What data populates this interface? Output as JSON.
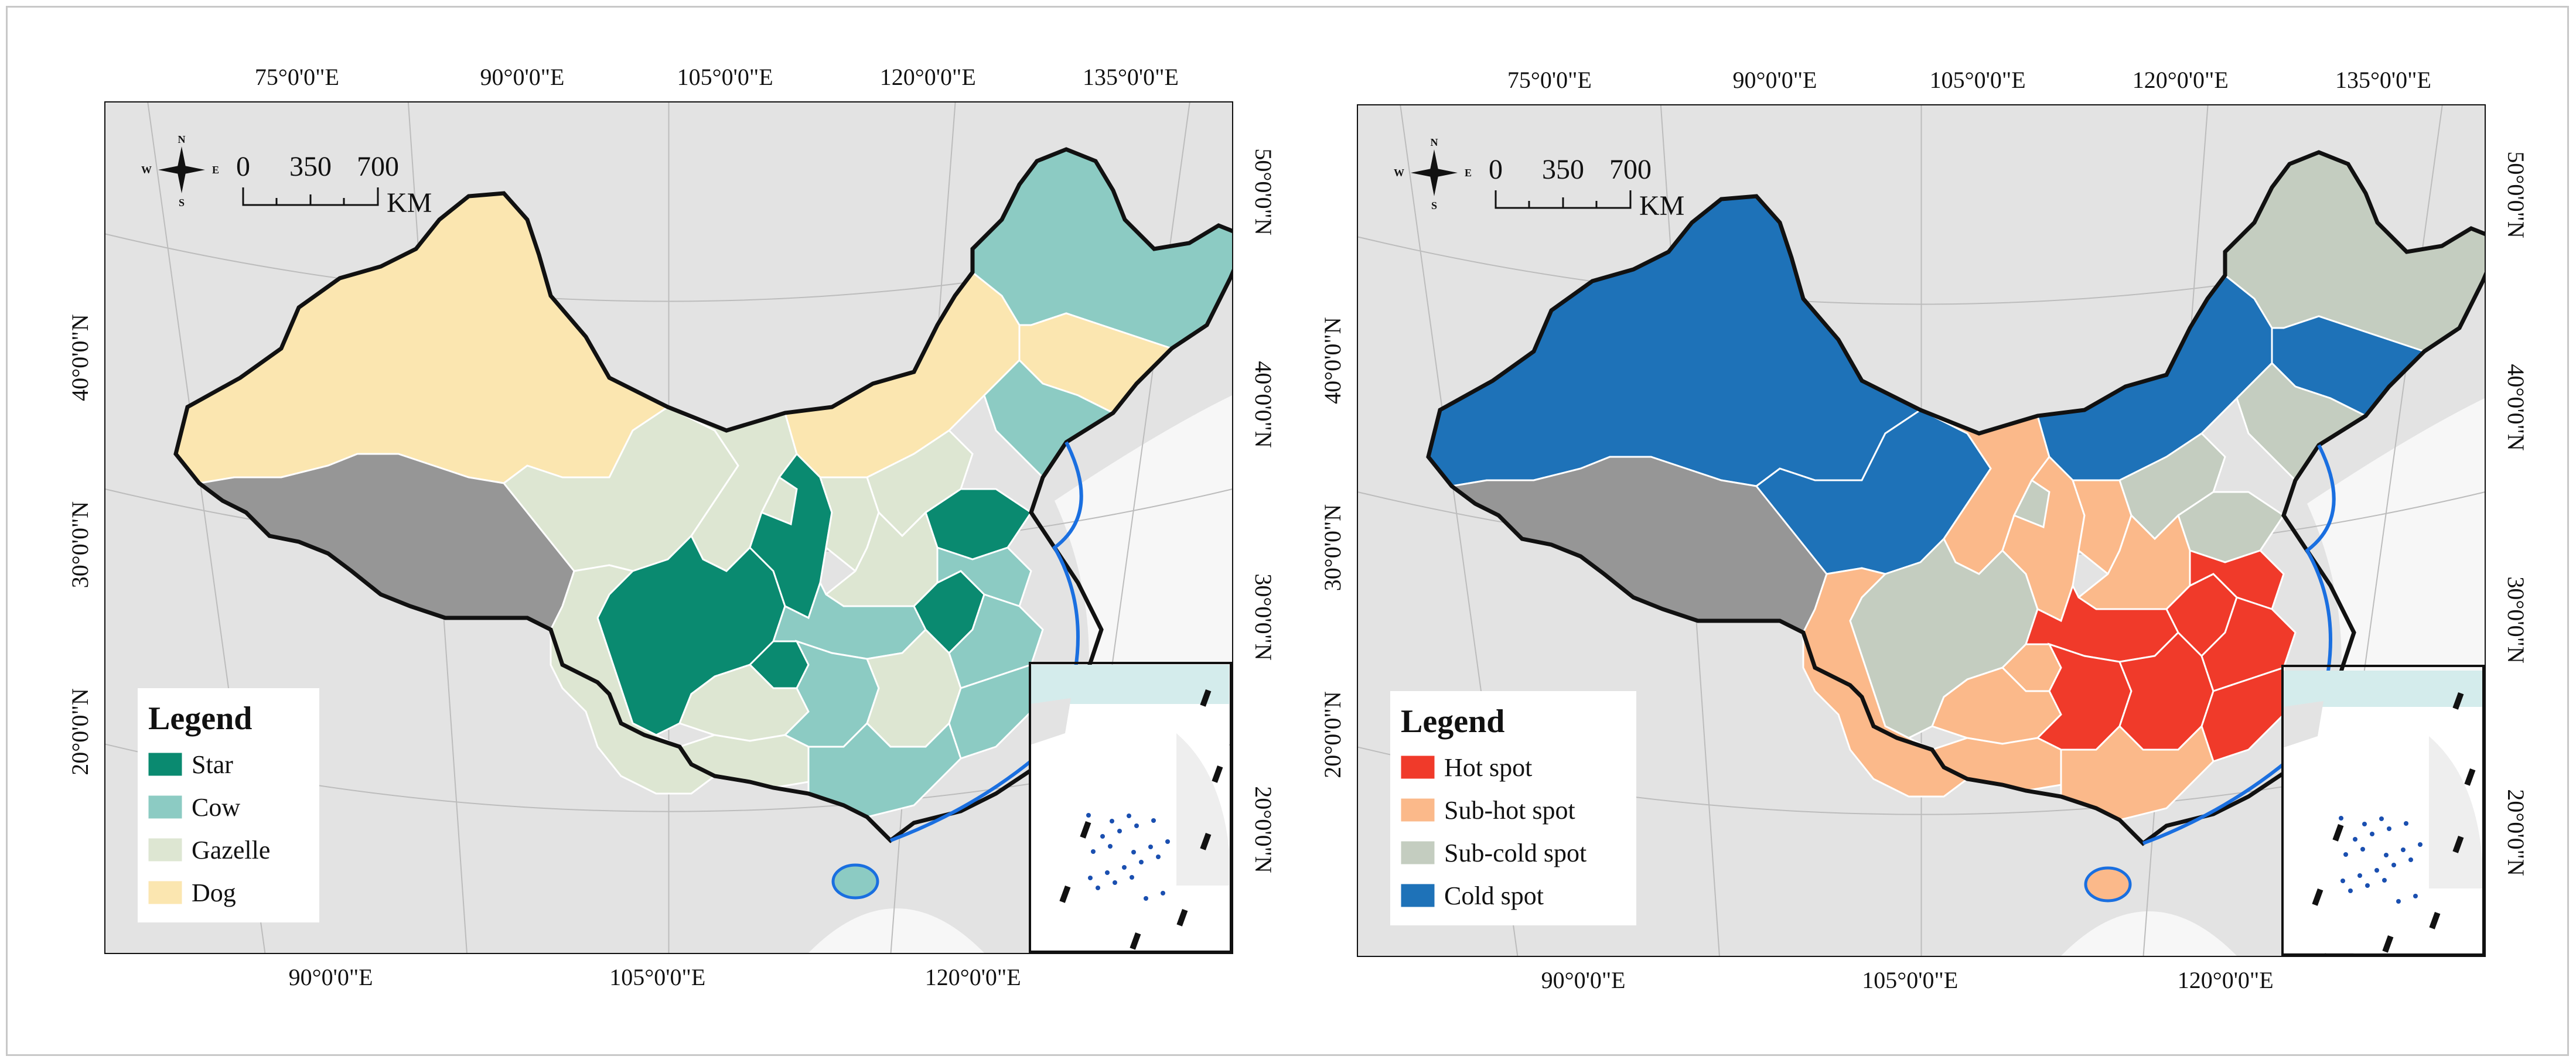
{
  "panels": [
    {
      "top_ticks": [
        "75°0'0\"E",
        "90°0'0\"E",
        "105°0'0\"E",
        "120°0'0\"E",
        "135°0'0\"E"
      ],
      "bottom_ticks": [
        "90°0'0\"E",
        "105°0'0\"E",
        "120°0'0\"E"
      ],
      "left_ticks": [
        "40°0'0\"N",
        "30°0'0\"N",
        "20°0'0\"N"
      ],
      "right_ticks": [
        "50°0'0\"N",
        "40°0'0\"N",
        "30°0'0\"N",
        "20°0'0\"N"
      ],
      "scale": {
        "zero": "0",
        "mid": "350",
        "max": "700",
        "unit": "KM"
      },
      "compass": {
        "n": "N",
        "s": "S",
        "w": "W",
        "e": "E"
      },
      "legend": {
        "title": "Legend",
        "items": [
          {
            "label": "Star",
            "color": "#0a8a70"
          },
          {
            "label": "Cow",
            "color": "#8ccbc3"
          },
          {
            "label": "Gazelle",
            "color": "#dde6d2"
          },
          {
            "label": "Dog",
            "color": "#fbe6b0"
          }
        ]
      },
      "palette": {
        "unclassified": "#969696",
        "lake_border": "#1a6fe0"
      }
    },
    {
      "top_ticks": [
        "75°0'0\"E",
        "90°0'0\"E",
        "105°0'0\"E",
        "120°0'0\"E",
        "135°0'0\"E"
      ],
      "bottom_ticks": [
        "90°0'0\"E",
        "105°0'0\"E",
        "120°0'0\"E"
      ],
      "left_ticks": [
        "40°0'0\"N",
        "30°0'0\"N",
        "20°0'0\"N"
      ],
      "right_ticks": [
        "50°0'0\"N",
        "40°0'0\"N",
        "30°0'0\"N",
        "20°0'0\"N"
      ],
      "scale": {
        "zero": "0",
        "mid": "350",
        "max": "700",
        "unit": "KM"
      },
      "compass": {
        "n": "N",
        "s": "S",
        "w": "W",
        "e": "E"
      },
      "legend": {
        "title": "Legend",
        "items": [
          {
            "label": "Hot spot",
            "color": "#f03a2a"
          },
          {
            "label": "Sub-hot spot",
            "color": "#fbb98a"
          },
          {
            "label": "Sub-cold spot",
            "color": "#c4cdc0"
          },
          {
            "label": "Cold spot",
            "color": "#1e72b8"
          }
        ]
      },
      "palette": {
        "unclassified": "#969696",
        "lake_border": "#1a6fe0"
      }
    }
  ]
}
